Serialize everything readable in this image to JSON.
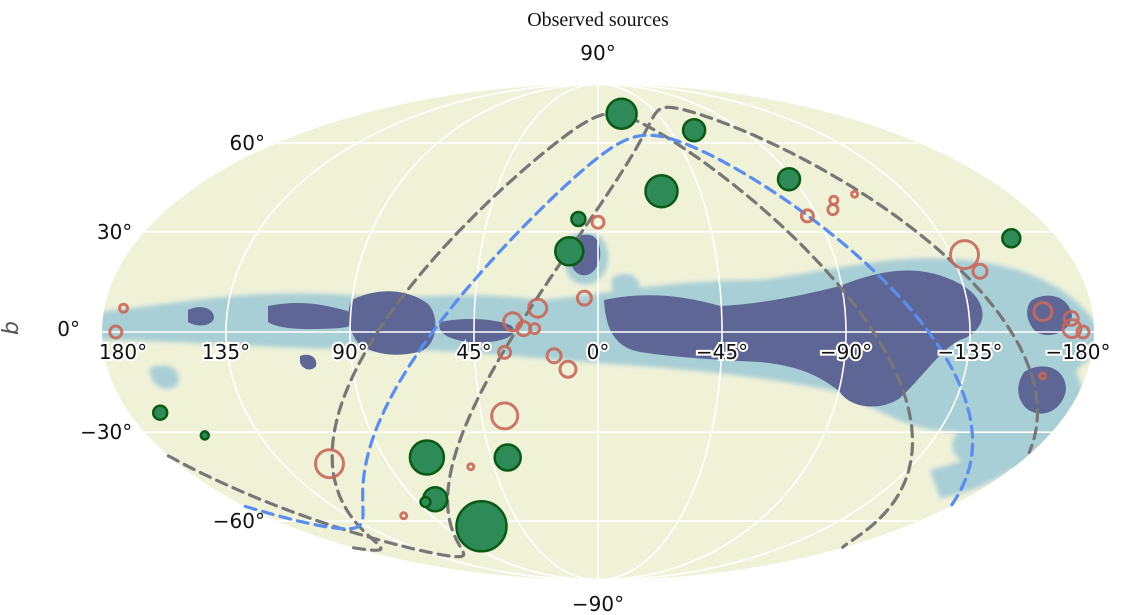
{
  "chart_data": {
    "type": "scatter",
    "projection": "mollweide",
    "title": "Observed sources",
    "xlabel": "",
    "ylabel": "b",
    "xlim": [
      180,
      -180
    ],
    "ylim": [
      -90,
      90
    ],
    "grid": true,
    "background": "galactic dust map",
    "x_tick_labels": [
      "180°",
      "135°",
      "90°",
      "45°",
      "0°",
      "−45°",
      "−90°",
      "−135°",
      "−180°"
    ],
    "x_tick_values": [
      180,
      135,
      90,
      45,
      0,
      -45,
      -90,
      -135,
      -180
    ],
    "y_tick_labels": [
      "90°",
      "60°",
      "30°",
      "0°",
      "−30°",
      "−60°",
      "−90°"
    ],
    "y_tick_values": [
      90,
      60,
      30,
      0,
      -30,
      -60,
      -90
    ],
    "colors": {
      "detected": "#2e8b57",
      "detected_edge": "#0a5a14",
      "candidate": "#c8685a",
      "dashed_gray": "#777777",
      "dashed_blue": "#5b8def",
      "plane": "#5d6694",
      "plane_edge": "#8fbfd3",
      "sky": "#f0f2d8",
      "grid": "#ffffff"
    },
    "series": [
      {
        "marker": "filled",
        "points": [
          {
            "l": -18,
            "b": 72,
            "size": 15
          },
          {
            "l": -60,
            "b": 65,
            "size": 11
          },
          {
            "l": -88,
            "b": 47,
            "size": 11
          },
          {
            "l": -28,
            "b": 43,
            "size": 16
          },
          {
            "l": 8,
            "b": 34,
            "size": 7
          },
          {
            "l": 11,
            "b": 24,
            "size": 14
          },
          {
            "l": -162,
            "b": 28,
            "size": 9
          },
          {
            "l": 168,
            "b": -24,
            "size": 7
          },
          {
            "l": 157,
            "b": -31,
            "size": 4
          },
          {
            "l": 72,
            "b": -38,
            "size": 17
          },
          {
            "l": 38,
            "b": -38,
            "size": 13
          },
          {
            "l": 80,
            "b": -52,
            "size": 12
          },
          {
            "l": 86,
            "b": -53,
            "size": 5
          },
          {
            "l": 68,
            "b": -62,
            "size": 25
          }
        ]
      },
      {
        "marker": "open",
        "points": [
          {
            "l": 0,
            "b": 33,
            "size": 6
          },
          {
            "l": -86,
            "b": 35,
            "size": 6
          },
          {
            "l": -98,
            "b": 37,
            "size": 5
          },
          {
            "l": -101,
            "b": 40,
            "size": 4
          },
          {
            "l": -112,
            "b": 42,
            "size": 3
          },
          {
            "l": -140,
            "b": 23,
            "size": 14
          },
          {
            "l": -143,
            "b": 18,
            "size": 7
          },
          {
            "l": -162,
            "b": 6,
            "size": 9
          },
          {
            "l": -172,
            "b": 4,
            "size": 7
          },
          {
            "l": -172,
            "b": 1,
            "size": 9
          },
          {
            "l": -176,
            "b": 0,
            "size": 6
          },
          {
            "l": 173,
            "b": 7,
            "size": 4
          },
          {
            "l": 175,
            "b": 0,
            "size": 6
          },
          {
            "l": 5,
            "b": 10,
            "size": 7
          },
          {
            "l": 22,
            "b": 7,
            "size": 9
          },
          {
            "l": 31,
            "b": 3,
            "size": 9
          },
          {
            "l": 27,
            "b": 1,
            "size": 7
          },
          {
            "l": 23,
            "b": 1,
            "size": 5
          },
          {
            "l": 34,
            "b": -6,
            "size": 6
          },
          {
            "l": 16,
            "b": -7,
            "size": 7
          },
          {
            "l": 11,
            "b": -11,
            "size": 8
          },
          {
            "l": 36,
            "b": -25,
            "size": 13
          },
          {
            "l": 115,
            "b": -40,
            "size": 14
          },
          {
            "l": 55,
            "b": -41,
            "size": 3
          },
          {
            "l": 105,
            "b": -58,
            "size": 3
          },
          {
            "l": -164,
            "b": -13,
            "size": 3
          }
        ]
      }
    ],
    "curves": [
      {
        "style": "dashed",
        "color": "gray",
        "inclination": 75,
        "phase": 150
      },
      {
        "style": "dashed",
        "color": "gray",
        "inclination": 72,
        "phase": 100
      },
      {
        "style": "dashed",
        "color": "blue",
        "inclination": 63,
        "phase": 120
      }
    ]
  }
}
